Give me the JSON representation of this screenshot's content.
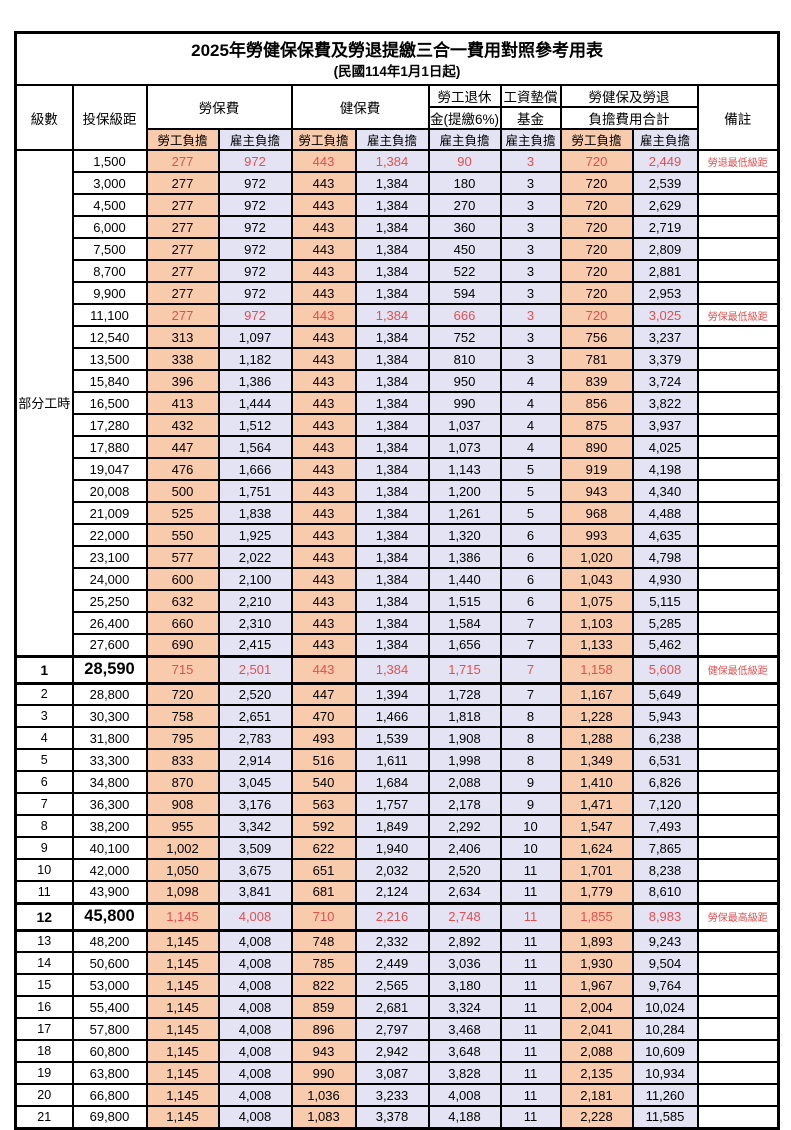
{
  "title": "2025年勞健保保費及勞退提繳三合一費用對照參考用表",
  "subtitle": "(民國114年1月1日起)",
  "header": {
    "level": "級數",
    "bracket": "投保級距",
    "labor_group": "勞保費",
    "health_group": "健保費",
    "pension_line1": "勞工退休",
    "pension_line2": "金(提繳6%)",
    "fund_line1": "工資墊償",
    "fund_line2": "基金",
    "total_line1": "勞健保及勞退",
    "total_line2": "負擔費用合計",
    "employee": "勞工負擔",
    "employer": "雇主負擔",
    "remark": "備註"
  },
  "group_label": "部分工時",
  "colors": {
    "employee_bg": "#F8CBAD",
    "employer_bg": "#E4E3F3",
    "highlight_text": "#E34F4F",
    "border": "#000000"
  },
  "rows": [
    {
      "level": "",
      "bracket": "1,500",
      "labor_emp": "277",
      "labor_er": "972",
      "health_emp": "443",
      "health_er": "1,384",
      "pension_er": "90",
      "fund_er": "3",
      "total_emp": "720",
      "total_er": "2,449",
      "remark": "勞退最低級距",
      "red": true,
      "big": false
    },
    {
      "level": "",
      "bracket": "3,000",
      "labor_emp": "277",
      "labor_er": "972",
      "health_emp": "443",
      "health_er": "1,384",
      "pension_er": "180",
      "fund_er": "3",
      "total_emp": "720",
      "total_er": "2,539",
      "remark": "",
      "red": false,
      "big": false
    },
    {
      "level": "",
      "bracket": "4,500",
      "labor_emp": "277",
      "labor_er": "972",
      "health_emp": "443",
      "health_er": "1,384",
      "pension_er": "270",
      "fund_er": "3",
      "total_emp": "720",
      "total_er": "2,629",
      "remark": "",
      "red": false,
      "big": false
    },
    {
      "level": "",
      "bracket": "6,000",
      "labor_emp": "277",
      "labor_er": "972",
      "health_emp": "443",
      "health_er": "1,384",
      "pension_er": "360",
      "fund_er": "3",
      "total_emp": "720",
      "total_er": "2,719",
      "remark": "",
      "red": false,
      "big": false
    },
    {
      "level": "",
      "bracket": "7,500",
      "labor_emp": "277",
      "labor_er": "972",
      "health_emp": "443",
      "health_er": "1,384",
      "pension_er": "450",
      "fund_er": "3",
      "total_emp": "720",
      "total_er": "2,809",
      "remark": "",
      "red": false,
      "big": false
    },
    {
      "level": "",
      "bracket": "8,700",
      "labor_emp": "277",
      "labor_er": "972",
      "health_emp": "443",
      "health_er": "1,384",
      "pension_er": "522",
      "fund_er": "3",
      "total_emp": "720",
      "total_er": "2,881",
      "remark": "",
      "red": false,
      "big": false
    },
    {
      "level": "",
      "bracket": "9,900",
      "labor_emp": "277",
      "labor_er": "972",
      "health_emp": "443",
      "health_er": "1,384",
      "pension_er": "594",
      "fund_er": "3",
      "total_emp": "720",
      "total_er": "2,953",
      "remark": "",
      "red": false,
      "big": false
    },
    {
      "level": "",
      "bracket": "11,100",
      "labor_emp": "277",
      "labor_er": "972",
      "health_emp": "443",
      "health_er": "1,384",
      "pension_er": "666",
      "fund_er": "3",
      "total_emp": "720",
      "total_er": "3,025",
      "remark": "勞保最低級距",
      "red": true,
      "big": false
    },
    {
      "level": "",
      "bracket": "12,540",
      "labor_emp": "313",
      "labor_er": "1,097",
      "health_emp": "443",
      "health_er": "1,384",
      "pension_er": "752",
      "fund_er": "3",
      "total_emp": "756",
      "total_er": "3,237",
      "remark": "",
      "red": false,
      "big": false
    },
    {
      "level": "",
      "bracket": "13,500",
      "labor_emp": "338",
      "labor_er": "1,182",
      "health_emp": "443",
      "health_er": "1,384",
      "pension_er": "810",
      "fund_er": "3",
      "total_emp": "781",
      "total_er": "3,379",
      "remark": "",
      "red": false,
      "big": false
    },
    {
      "level": "",
      "bracket": "15,840",
      "labor_emp": "396",
      "labor_er": "1,386",
      "health_emp": "443",
      "health_er": "1,384",
      "pension_er": "950",
      "fund_er": "4",
      "total_emp": "839",
      "total_er": "3,724",
      "remark": "",
      "red": false,
      "big": false
    },
    {
      "level": "",
      "bracket": "16,500",
      "labor_emp": "413",
      "labor_er": "1,444",
      "health_emp": "443",
      "health_er": "1,384",
      "pension_er": "990",
      "fund_er": "4",
      "total_emp": "856",
      "total_er": "3,822",
      "remark": "",
      "red": false,
      "big": false
    },
    {
      "level": "",
      "bracket": "17,280",
      "labor_emp": "432",
      "labor_er": "1,512",
      "health_emp": "443",
      "health_er": "1,384",
      "pension_er": "1,037",
      "fund_er": "4",
      "total_emp": "875",
      "total_er": "3,937",
      "remark": "",
      "red": false,
      "big": false
    },
    {
      "level": "",
      "bracket": "17,880",
      "labor_emp": "447",
      "labor_er": "1,564",
      "health_emp": "443",
      "health_er": "1,384",
      "pension_er": "1,073",
      "fund_er": "4",
      "total_emp": "890",
      "total_er": "4,025",
      "remark": "",
      "red": false,
      "big": false
    },
    {
      "level": "",
      "bracket": "19,047",
      "labor_emp": "476",
      "labor_er": "1,666",
      "health_emp": "443",
      "health_er": "1,384",
      "pension_er": "1,143",
      "fund_er": "5",
      "total_emp": "919",
      "total_er": "4,198",
      "remark": "",
      "red": false,
      "big": false
    },
    {
      "level": "",
      "bracket": "20,008",
      "labor_emp": "500",
      "labor_er": "1,751",
      "health_emp": "443",
      "health_er": "1,384",
      "pension_er": "1,200",
      "fund_er": "5",
      "total_emp": "943",
      "total_er": "4,340",
      "remark": "",
      "red": false,
      "big": false
    },
    {
      "level": "",
      "bracket": "21,009",
      "labor_emp": "525",
      "labor_er": "1,838",
      "health_emp": "443",
      "health_er": "1,384",
      "pension_er": "1,261",
      "fund_er": "5",
      "total_emp": "968",
      "total_er": "4,488",
      "remark": "",
      "red": false,
      "big": false
    },
    {
      "level": "",
      "bracket": "22,000",
      "labor_emp": "550",
      "labor_er": "1,925",
      "health_emp": "443",
      "health_er": "1,384",
      "pension_er": "1,320",
      "fund_er": "6",
      "total_emp": "993",
      "total_er": "4,635",
      "remark": "",
      "red": false,
      "big": false
    },
    {
      "level": "",
      "bracket": "23,100",
      "labor_emp": "577",
      "labor_er": "2,022",
      "health_emp": "443",
      "health_er": "1,384",
      "pension_er": "1,386",
      "fund_er": "6",
      "total_emp": "1,020",
      "total_er": "4,798",
      "remark": "",
      "red": false,
      "big": false
    },
    {
      "level": "",
      "bracket": "24,000",
      "labor_emp": "600",
      "labor_er": "2,100",
      "health_emp": "443",
      "health_er": "1,384",
      "pension_er": "1,440",
      "fund_er": "6",
      "total_emp": "1,043",
      "total_er": "4,930",
      "remark": "",
      "red": false,
      "big": false
    },
    {
      "level": "",
      "bracket": "25,250",
      "labor_emp": "632",
      "labor_er": "2,210",
      "health_emp": "443",
      "health_er": "1,384",
      "pension_er": "1,515",
      "fund_er": "6",
      "total_emp": "1,075",
      "total_er": "5,115",
      "remark": "",
      "red": false,
      "big": false
    },
    {
      "level": "",
      "bracket": "26,400",
      "labor_emp": "660",
      "labor_er": "2,310",
      "health_emp": "443",
      "health_er": "1,384",
      "pension_er": "1,584",
      "fund_er": "7",
      "total_emp": "1,103",
      "total_er": "5,285",
      "remark": "",
      "red": false,
      "big": false
    },
    {
      "level": "",
      "bracket": "27,600",
      "labor_emp": "690",
      "labor_er": "2,415",
      "health_emp": "443",
      "health_er": "1,384",
      "pension_er": "1,656",
      "fund_er": "7",
      "total_emp": "1,133",
      "total_er": "5,462",
      "remark": "",
      "red": false,
      "big": false
    },
    {
      "level": "1",
      "bracket": "28,590",
      "labor_emp": "715",
      "labor_er": "2,501",
      "health_emp": "443",
      "health_er": "1,384",
      "pension_er": "1,715",
      "fund_er": "7",
      "total_emp": "1,158",
      "total_er": "5,608",
      "remark": "健保最低級距",
      "red": true,
      "big": true
    },
    {
      "level": "2",
      "bracket": "28,800",
      "labor_emp": "720",
      "labor_er": "2,520",
      "health_emp": "447",
      "health_er": "1,394",
      "pension_er": "1,728",
      "fund_er": "7",
      "total_emp": "1,167",
      "total_er": "5,649",
      "remark": "",
      "red": false,
      "big": false
    },
    {
      "level": "3",
      "bracket": "30,300",
      "labor_emp": "758",
      "labor_er": "2,651",
      "health_emp": "470",
      "health_er": "1,466",
      "pension_er": "1,818",
      "fund_er": "8",
      "total_emp": "1,228",
      "total_er": "5,943",
      "remark": "",
      "red": false,
      "big": false
    },
    {
      "level": "4",
      "bracket": "31,800",
      "labor_emp": "795",
      "labor_er": "2,783",
      "health_emp": "493",
      "health_er": "1,539",
      "pension_er": "1,908",
      "fund_er": "8",
      "total_emp": "1,288",
      "total_er": "6,238",
      "remark": "",
      "red": false,
      "big": false
    },
    {
      "level": "5",
      "bracket": "33,300",
      "labor_emp": "833",
      "labor_er": "2,914",
      "health_emp": "516",
      "health_er": "1,611",
      "pension_er": "1,998",
      "fund_er": "8",
      "total_emp": "1,349",
      "total_er": "6,531",
      "remark": "",
      "red": false,
      "big": false
    },
    {
      "level": "6",
      "bracket": "34,800",
      "labor_emp": "870",
      "labor_er": "3,045",
      "health_emp": "540",
      "health_er": "1,684",
      "pension_er": "2,088",
      "fund_er": "9",
      "total_emp": "1,410",
      "total_er": "6,826",
      "remark": "",
      "red": false,
      "big": false
    },
    {
      "level": "7",
      "bracket": "36,300",
      "labor_emp": "908",
      "labor_er": "3,176",
      "health_emp": "563",
      "health_er": "1,757",
      "pension_er": "2,178",
      "fund_er": "9",
      "total_emp": "1,471",
      "total_er": "7,120",
      "remark": "",
      "red": false,
      "big": false
    },
    {
      "level": "8",
      "bracket": "38,200",
      "labor_emp": "955",
      "labor_er": "3,342",
      "health_emp": "592",
      "health_er": "1,849",
      "pension_er": "2,292",
      "fund_er": "10",
      "total_emp": "1,547",
      "total_er": "7,493",
      "remark": "",
      "red": false,
      "big": false
    },
    {
      "level": "9",
      "bracket": "40,100",
      "labor_emp": "1,002",
      "labor_er": "3,509",
      "health_emp": "622",
      "health_er": "1,940",
      "pension_er": "2,406",
      "fund_er": "10",
      "total_emp": "1,624",
      "total_er": "7,865",
      "remark": "",
      "red": false,
      "big": false
    },
    {
      "level": "10",
      "bracket": "42,000",
      "labor_emp": "1,050",
      "labor_er": "3,675",
      "health_emp": "651",
      "health_er": "2,032",
      "pension_er": "2,520",
      "fund_er": "11",
      "total_emp": "1,701",
      "total_er": "8,238",
      "remark": "",
      "red": false,
      "big": false
    },
    {
      "level": "11",
      "bracket": "43,900",
      "labor_emp": "1,098",
      "labor_er": "3,841",
      "health_emp": "681",
      "health_er": "2,124",
      "pension_er": "2,634",
      "fund_er": "11",
      "total_emp": "1,779",
      "total_er": "8,610",
      "remark": "",
      "red": false,
      "big": false
    },
    {
      "level": "12",
      "bracket": "45,800",
      "labor_emp": "1,145",
      "labor_er": "4,008",
      "health_emp": "710",
      "health_er": "2,216",
      "pension_er": "2,748",
      "fund_er": "11",
      "total_emp": "1,855",
      "total_er": "8,983",
      "remark": "勞保最高級距",
      "red": true,
      "big": true
    },
    {
      "level": "13",
      "bracket": "48,200",
      "labor_emp": "1,145",
      "labor_er": "4,008",
      "health_emp": "748",
      "health_er": "2,332",
      "pension_er": "2,892",
      "fund_er": "11",
      "total_emp": "1,893",
      "total_er": "9,243",
      "remark": "",
      "red": false,
      "big": false
    },
    {
      "level": "14",
      "bracket": "50,600",
      "labor_emp": "1,145",
      "labor_er": "4,008",
      "health_emp": "785",
      "health_er": "2,449",
      "pension_er": "3,036",
      "fund_er": "11",
      "total_emp": "1,930",
      "total_er": "9,504",
      "remark": "",
      "red": false,
      "big": false
    },
    {
      "level": "15",
      "bracket": "53,000",
      "labor_emp": "1,145",
      "labor_er": "4,008",
      "health_emp": "822",
      "health_er": "2,565",
      "pension_er": "3,180",
      "fund_er": "11",
      "total_emp": "1,967",
      "total_er": "9,764",
      "remark": "",
      "red": false,
      "big": false
    },
    {
      "level": "16",
      "bracket": "55,400",
      "labor_emp": "1,145",
      "labor_er": "4,008",
      "health_emp": "859",
      "health_er": "2,681",
      "pension_er": "3,324",
      "fund_er": "11",
      "total_emp": "2,004",
      "total_er": "10,024",
      "remark": "",
      "red": false,
      "big": false
    },
    {
      "level": "17",
      "bracket": "57,800",
      "labor_emp": "1,145",
      "labor_er": "4,008",
      "health_emp": "896",
      "health_er": "2,797",
      "pension_er": "3,468",
      "fund_er": "11",
      "total_emp": "2,041",
      "total_er": "10,284",
      "remark": "",
      "red": false,
      "big": false
    },
    {
      "level": "18",
      "bracket": "60,800",
      "labor_emp": "1,145",
      "labor_er": "4,008",
      "health_emp": "943",
      "health_er": "2,942",
      "pension_er": "3,648",
      "fund_er": "11",
      "total_emp": "2,088",
      "total_er": "10,609",
      "remark": "",
      "red": false,
      "big": false
    },
    {
      "level": "19",
      "bracket": "63,800",
      "labor_emp": "1,145",
      "labor_er": "4,008",
      "health_emp": "990",
      "health_er": "3,087",
      "pension_er": "3,828",
      "fund_er": "11",
      "total_emp": "2,135",
      "total_er": "10,934",
      "remark": "",
      "red": false,
      "big": false
    },
    {
      "level": "20",
      "bracket": "66,800",
      "labor_emp": "1,145",
      "labor_er": "4,008",
      "health_emp": "1,036",
      "health_er": "3,233",
      "pension_er": "4,008",
      "fund_er": "11",
      "total_emp": "2,181",
      "total_er": "11,260",
      "remark": "",
      "red": false,
      "big": false
    },
    {
      "level": "21",
      "bracket": "69,800",
      "labor_emp": "1,145",
      "labor_er": "4,008",
      "health_emp": "1,083",
      "health_er": "3,378",
      "pension_er": "4,188",
      "fund_er": "11",
      "total_emp": "2,228",
      "total_er": "11,585",
      "remark": "",
      "red": false,
      "big": false
    }
  ]
}
